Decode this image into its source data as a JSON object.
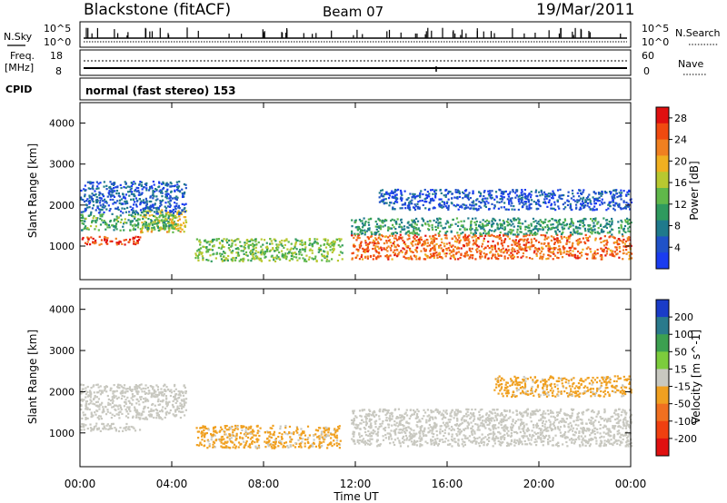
{
  "header": {
    "station": "Blackstone (fitACF)",
    "beam": "Beam 07",
    "date": "19/Mar/2011"
  },
  "noise_panel": {
    "left_label": "N.Sky",
    "left_ticks": [
      "10^5",
      "10^0"
    ],
    "right_label": "N.Search",
    "right_ticks": [
      "10^5",
      "10^0"
    ]
  },
  "freq_panel": {
    "left_label_line1": "Freq.",
    "left_label_line2": "[MHz]",
    "left_ticks": [
      "18",
      "8"
    ],
    "right_label": "Nave",
    "right_ticks": [
      "60",
      "0"
    ]
  },
  "cpid_panel": {
    "label": "CPID",
    "text": "normal (fast stereo) 153"
  },
  "chart_data": [
    {
      "type": "heatmap",
      "title": "Power",
      "ylabel": "Slant Range [km]",
      "xlabel": "Time UT",
      "x_ticks": [
        "00:00",
        "04:00",
        "08:00",
        "12:00",
        "16:00",
        "20:00",
        "00:00"
      ],
      "xlim_hours": [
        0,
        24
      ],
      "ylim_km": [
        180,
        4500
      ],
      "y_ticks": [
        1000,
        2000,
        3000,
        4000
      ],
      "colorbar": {
        "label": "Power [dB]",
        "ticks": [
          4,
          8,
          12,
          16,
          20,
          24,
          28
        ],
        "range": [
          0,
          30
        ],
        "colors": [
          "#1a3cf0",
          "#2052c8",
          "#1f7a8c",
          "#2f9a5e",
          "#60b84a",
          "#b8c830",
          "#f0b020",
          "#f08020",
          "#f04a10",
          "#e01010"
        ]
      },
      "echo_regions": [
        {
          "t_start": 0.0,
          "t_end": 2.6,
          "range_km": [
            1050,
            1250
          ],
          "value_db": 26
        },
        {
          "t_start": 2.6,
          "t_end": 4.6,
          "range_km": [
            1350,
            1900
          ],
          "value_db": 18
        },
        {
          "t_start": 0.0,
          "t_end": 4.2,
          "range_km": [
            1400,
            1800
          ],
          "value_db": 12
        },
        {
          "t_start": 0.0,
          "t_end": 4.6,
          "range_km": [
            1800,
            2600
          ],
          "value_db": 5
        },
        {
          "t_start": 5.0,
          "t_end": 11.4,
          "range_km": [
            650,
            1200
          ],
          "value_db": 14
        },
        {
          "t_start": 11.8,
          "t_end": 24.0,
          "range_km": [
            700,
            1300
          ],
          "value_db": 24
        },
        {
          "t_start": 11.8,
          "t_end": 24.0,
          "range_km": [
            1300,
            1700
          ],
          "value_db": 10
        },
        {
          "t_start": 13.0,
          "t_end": 24.0,
          "range_km": [
            1900,
            2400
          ],
          "value_db": 4
        }
      ]
    },
    {
      "type": "heatmap",
      "title": "Velocity",
      "ylabel": "Slant Range [km]",
      "xlabel": "Time UT",
      "x_ticks": [
        "00:00",
        "04:00",
        "08:00",
        "12:00",
        "16:00",
        "20:00",
        "00:00"
      ],
      "xlim_hours": [
        0,
        24
      ],
      "ylim_km": [
        180,
        4500
      ],
      "y_ticks": [
        1000,
        2000,
        3000,
        4000
      ],
      "colorbar": {
        "label": "Velocity [m s^-1]",
        "ticks": [
          200,
          100,
          50,
          15,
          -15,
          -50,
          -100,
          -200
        ],
        "range": [
          -250,
          250
        ],
        "colors": [
          "#1a3cc8",
          "#2a7a8c",
          "#3ca050",
          "#7ccc3c",
          "#c8c8c0",
          "#f0a020",
          "#f07020",
          "#f04010",
          "#e01010"
        ]
      },
      "echo_regions": [
        {
          "t_start": 0.0,
          "t_end": 2.6,
          "range_km": [
            1050,
            1250
          ],
          "value_ms": 0
        },
        {
          "t_start": 0.0,
          "t_end": 4.6,
          "range_km": [
            1350,
            2200
          ],
          "value_ms": 0
        },
        {
          "t_start": 5.0,
          "t_end": 11.4,
          "range_km": [
            650,
            1200
          ],
          "value_ms": -40
        },
        {
          "t_start": 11.8,
          "t_end": 24.0,
          "range_km": [
            700,
            1600
          ],
          "value_ms": 0
        },
        {
          "t_start": 18.0,
          "t_end": 24.0,
          "range_km": [
            1900,
            2400
          ],
          "value_ms": -40
        }
      ]
    }
  ]
}
